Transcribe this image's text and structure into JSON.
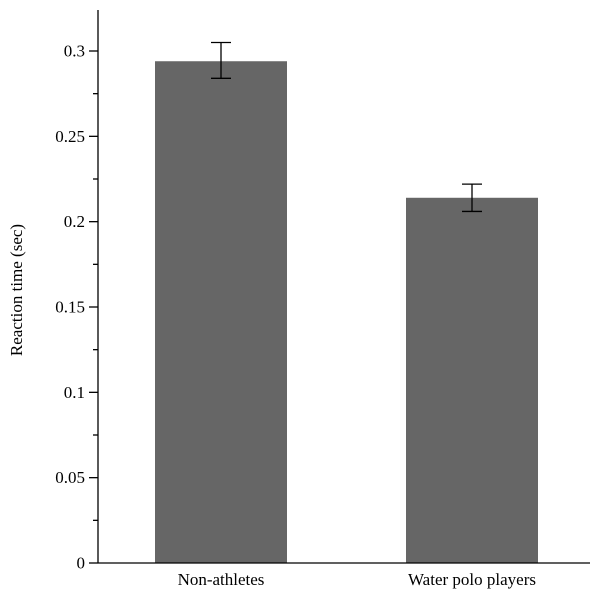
{
  "chart_data": {
    "type": "bar",
    "title": "",
    "xlabel": "",
    "ylabel": "Reaction time (sec)",
    "categories": [
      "Non-athletes",
      "Water polo players"
    ],
    "values": [
      0.294,
      0.214
    ],
    "error_bars": [
      {
        "low": 0.284,
        "high": 0.305
      },
      {
        "low": 0.206,
        "high": 0.222
      }
    ],
    "ylim": [
      0,
      0.32
    ],
    "yticks": [
      0,
      0.05,
      0.1,
      0.15,
      0.2,
      0.25,
      0.3
    ],
    "ytick_labels": [
      "0",
      "0.05",
      "0.1",
      "0.15",
      "0.2",
      "0.25",
      "0.3"
    ],
    "minor_tick_step": 0.025,
    "grid": false,
    "bar_color": "#666666",
    "axis_color": "#000000"
  }
}
